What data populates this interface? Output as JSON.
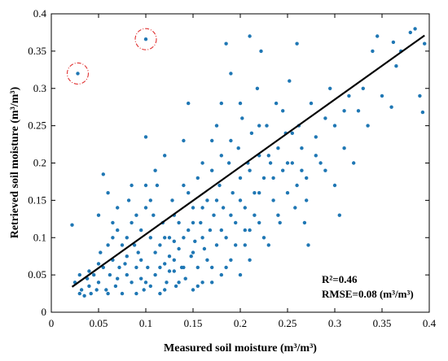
{
  "chart_data": {
    "type": "scatter",
    "title": "",
    "xlabel": "Measured soil moisture (m³/m³)",
    "ylabel": "Retrieved soil moisture (m³/m³)",
    "xlim": [
      0,
      0.4
    ],
    "ylim": [
      0,
      0.4
    ],
    "xticks": [
      "0",
      "0.05",
      "0.1",
      "0.15",
      "0.2",
      "0.25",
      "0.3",
      "0.35",
      "0.4"
    ],
    "yticks": [
      "0",
      "0.05",
      "0.1",
      "0.15",
      "0.2",
      "0.25",
      "0.3",
      "0.35",
      "0.4"
    ],
    "grid": false,
    "point_color": "#1f77b4",
    "fit_line": {
      "x": [
        0.022,
        0.395
      ],
      "y": [
        0.034,
        0.371
      ],
      "color": "#000000"
    },
    "highlighted_points": [
      {
        "x": 0.028,
        "y": 0.32
      },
      {
        "x": 0.1,
        "y": 0.366
      }
    ],
    "highlight_color": "#e03030",
    "annotations": {
      "r2": "R²=0.46",
      "rmse": "RMSE=0.08 (m³/m³)"
    },
    "points": [
      [
        0.022,
        0.117
      ],
      [
        0.025,
        0.04
      ],
      [
        0.03,
        0.05
      ],
      [
        0.032,
        0.03
      ],
      [
        0.035,
        0.022
      ],
      [
        0.038,
        0.045
      ],
      [
        0.04,
        0.035
      ],
      [
        0.042,
        0.025
      ],
      [
        0.045,
        0.05
      ],
      [
        0.048,
        0.03
      ],
      [
        0.05,
        0.04
      ],
      [
        0.05,
        0.13
      ],
      [
        0.052,
        0.08
      ],
      [
        0.055,
        0.06
      ],
      [
        0.055,
        0.185
      ],
      [
        0.058,
        0.03
      ],
      [
        0.06,
        0.09
      ],
      [
        0.06,
        0.16
      ],
      [
        0.062,
        0.05
      ],
      [
        0.065,
        0.07
      ],
      [
        0.065,
        0.12
      ],
      [
        0.068,
        0.035
      ],
      [
        0.07,
        0.11
      ],
      [
        0.07,
        0.045
      ],
      [
        0.072,
        0.06
      ],
      [
        0.075,
        0.09
      ],
      [
        0.075,
        0.025
      ],
      [
        0.078,
        0.065
      ],
      [
        0.08,
        0.1
      ],
      [
        0.08,
        0.05
      ],
      [
        0.082,
        0.15
      ],
      [
        0.085,
        0.04
      ],
      [
        0.085,
        0.17
      ],
      [
        0.088,
        0.09
      ],
      [
        0.09,
        0.06
      ],
      [
        0.09,
        0.13
      ],
      [
        0.092,
        0.08
      ],
      [
        0.095,
        0.045
      ],
      [
        0.095,
        0.11
      ],
      [
        0.098,
        0.03
      ],
      [
        0.1,
        0.235
      ],
      [
        0.1,
        0.14
      ],
      [
        0.102,
        0.06
      ],
      [
        0.105,
        0.1
      ],
      [
        0.105,
        0.035
      ],
      [
        0.108,
        0.13
      ],
      [
        0.11,
        0.08
      ],
      [
        0.11,
        0.05
      ],
      [
        0.112,
        0.17
      ],
      [
        0.115,
        0.09
      ],
      [
        0.115,
        0.025
      ],
      [
        0.118,
        0.12
      ],
      [
        0.12,
        0.065
      ],
      [
        0.12,
        0.21
      ],
      [
        0.122,
        0.04
      ],
      [
        0.125,
        0.1
      ],
      [
        0.125,
        0.075
      ],
      [
        0.128,
        0.15
      ],
      [
        0.13,
        0.055
      ],
      [
        0.13,
        0.095
      ],
      [
        0.132,
        0.035
      ],
      [
        0.135,
        0.12
      ],
      [
        0.135,
        0.085
      ],
      [
        0.138,
        0.06
      ],
      [
        0.14,
        0.17
      ],
      [
        0.14,
        0.23
      ],
      [
        0.142,
        0.045
      ],
      [
        0.145,
        0.28
      ],
      [
        0.145,
        0.11
      ],
      [
        0.148,
        0.075
      ],
      [
        0.15,
        0.14
      ],
      [
        0.15,
        0.03
      ],
      [
        0.152,
        0.095
      ],
      [
        0.155,
        0.18
      ],
      [
        0.155,
        0.06
      ],
      [
        0.158,
        0.12
      ],
      [
        0.16,
        0.2
      ],
      [
        0.16,
        0.04
      ],
      [
        0.162,
        0.085
      ],
      [
        0.165,
        0.15
      ],
      [
        0.168,
        0.11
      ],
      [
        0.17,
        0.23
      ],
      [
        0.17,
        0.06
      ],
      [
        0.172,
        0.13
      ],
      [
        0.175,
        0.25
      ],
      [
        0.175,
        0.09
      ],
      [
        0.178,
        0.17
      ],
      [
        0.18,
        0.28
      ],
      [
        0.18,
        0.05
      ],
      [
        0.182,
        0.14
      ],
      [
        0.185,
        0.36
      ],
      [
        0.185,
        0.1
      ],
      [
        0.188,
        0.2
      ],
      [
        0.19,
        0.32
      ],
      [
        0.19,
        0.07
      ],
      [
        0.192,
        0.16
      ],
      [
        0.195,
        0.12
      ],
      [
        0.198,
        0.22
      ],
      [
        0.2,
        0.18
      ],
      [
        0.2,
        0.05
      ],
      [
        0.202,
        0.26
      ],
      [
        0.205,
        0.14
      ],
      [
        0.205,
        0.09
      ],
      [
        0.208,
        0.2
      ],
      [
        0.21,
        0.37
      ],
      [
        0.21,
        0.11
      ],
      [
        0.212,
        0.24
      ],
      [
        0.215,
        0.16
      ],
      [
        0.218,
        0.3
      ],
      [
        0.22,
        0.12
      ],
      [
        0.22,
        0.21
      ],
      [
        0.222,
        0.35
      ],
      [
        0.225,
        0.18
      ],
      [
        0.228,
        0.25
      ],
      [
        0.23,
        0.09
      ],
      [
        0.232,
        0.2
      ],
      [
        0.235,
        0.15
      ],
      [
        0.238,
        0.28
      ],
      [
        0.24,
        0.22
      ],
      [
        0.242,
        0.12
      ],
      [
        0.245,
        0.19
      ],
      [
        0.248,
        0.24
      ],
      [
        0.25,
        0.16
      ],
      [
        0.252,
        0.31
      ],
      [
        0.255,
        0.2
      ],
      [
        0.258,
        0.14
      ],
      [
        0.26,
        0.36
      ],
      [
        0.262,
        0.25
      ],
      [
        0.265,
        0.22
      ],
      [
        0.268,
        0.12
      ],
      [
        0.27,
        0.18
      ],
      [
        0.272,
        0.09
      ],
      [
        0.275,
        0.28
      ],
      [
        0.28,
        0.235
      ],
      [
        0.285,
        0.2
      ],
      [
        0.29,
        0.26
      ],
      [
        0.295,
        0.3
      ],
      [
        0.3,
        0.25
      ],
      [
        0.305,
        0.13
      ],
      [
        0.31,
        0.22
      ],
      [
        0.315,
        0.29
      ],
      [
        0.32,
        0.2
      ],
      [
        0.325,
        0.27
      ],
      [
        0.33,
        0.3
      ],
      [
        0.335,
        0.25
      ],
      [
        0.34,
        0.35
      ],
      [
        0.345,
        0.37
      ],
      [
        0.35,
        0.29
      ],
      [
        0.36,
        0.275
      ],
      [
        0.362,
        0.362
      ],
      [
        0.365,
        0.33
      ],
      [
        0.37,
        0.35
      ],
      [
        0.38,
        0.375
      ],
      [
        0.385,
        0.38
      ],
      [
        0.39,
        0.29
      ],
      [
        0.393,
        0.268
      ],
      [
        0.395,
        0.36
      ],
      [
        0.03,
        0.025
      ],
      [
        0.04,
        0.055
      ],
      [
        0.05,
        0.065
      ],
      [
        0.06,
        0.025
      ],
      [
        0.065,
        0.1
      ],
      [
        0.07,
        0.14
      ],
      [
        0.08,
        0.075
      ],
      [
        0.085,
        0.12
      ],
      [
        0.09,
        0.025
      ],
      [
        0.095,
        0.07
      ],
      [
        0.1,
        0.04
      ],
      [
        0.1,
        0.17
      ],
      [
        0.105,
        0.15
      ],
      [
        0.11,
        0.19
      ],
      [
        0.115,
        0.06
      ],
      [
        0.12,
        0.1
      ],
      [
        0.12,
        0.03
      ],
      [
        0.125,
        0.055
      ],
      [
        0.13,
        0.13
      ],
      [
        0.13,
        0.07
      ],
      [
        0.135,
        0.04
      ],
      [
        0.14,
        0.1
      ],
      [
        0.14,
        0.06
      ],
      [
        0.145,
        0.16
      ],
      [
        0.15,
        0.08
      ],
      [
        0.15,
        0.12
      ],
      [
        0.155,
        0.035
      ],
      [
        0.16,
        0.14
      ],
      [
        0.16,
        0.1
      ],
      [
        0.165,
        0.07
      ],
      [
        0.17,
        0.19
      ],
      [
        0.17,
        0.04
      ],
      [
        0.175,
        0.15
      ],
      [
        0.18,
        0.11
      ],
      [
        0.18,
        0.21
      ],
      [
        0.185,
        0.06
      ],
      [
        0.19,
        0.13
      ],
      [
        0.19,
        0.23
      ],
      [
        0.195,
        0.09
      ],
      [
        0.2,
        0.15
      ],
      [
        0.2,
        0.28
      ],
      [
        0.205,
        0.11
      ],
      [
        0.21,
        0.19
      ],
      [
        0.21,
        0.07
      ],
      [
        0.215,
        0.13
      ],
      [
        0.22,
        0.25
      ],
      [
        0.22,
        0.16
      ],
      [
        0.225,
        0.1
      ],
      [
        0.23,
        0.21
      ],
      [
        0.235,
        0.18
      ],
      [
        0.24,
        0.13
      ],
      [
        0.245,
        0.27
      ],
      [
        0.25,
        0.2
      ],
      [
        0.255,
        0.24
      ],
      [
        0.26,
        0.17
      ],
      [
        0.265,
        0.19
      ],
      [
        0.27,
        0.15
      ],
      [
        0.28,
        0.21
      ],
      [
        0.29,
        0.19
      ],
      [
        0.3,
        0.17
      ],
      [
        0.31,
        0.27
      ]
    ]
  }
}
